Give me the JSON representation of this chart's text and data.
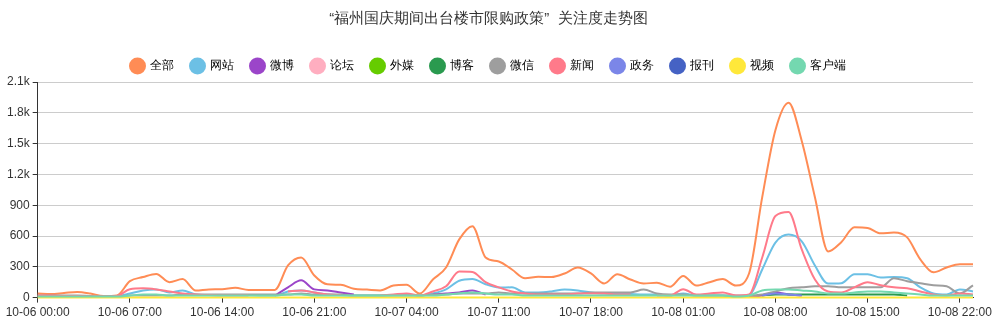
{
  "chart_data": {
    "type": "line",
    "title": "“福州国庆期间出台楼市限购政策”  关注度走势图",
    "categories": [
      "10-06 00:00",
      null,
      null,
      null,
      null,
      null,
      null,
      "10-06 07:00",
      null,
      null,
      null,
      null,
      null,
      null,
      "10-06 14:00",
      null,
      null,
      null,
      null,
      null,
      null,
      "10-06 21:00",
      null,
      null,
      null,
      null,
      null,
      null,
      "10-07 04:00",
      null,
      null,
      null,
      null,
      null,
      null,
      "10-07 11:00",
      null,
      null,
      null,
      null,
      null,
      null,
      "10-07 18:00",
      null,
      null,
      null,
      null,
      null,
      null,
      "10-08 01:00",
      null,
      null,
      null,
      null,
      null,
      null,
      "10-08 08:00",
      null,
      null,
      null,
      null,
      null,
      null,
      "10-08 15:00",
      null,
      null,
      null,
      null,
      null,
      null,
      "10-08 22:00",
      null
    ],
    "series": [
      {
        "name": "全部",
        "color": "#ff8c55",
        "values": [
          40,
          35,
          45,
          55,
          40,
          15,
          20,
          160,
          200,
          230,
          150,
          180,
          70,
          80,
          82,
          95,
          75,
          75,
          75,
          313,
          391,
          215,
          129,
          125,
          86,
          78,
          70,
          117,
          125,
          39,
          176,
          293,
          567,
          696,
          391,
          352,
          274,
          188,
          203,
          200,
          235,
          293,
          235,
          137,
          227,
          176,
          137,
          145,
          106,
          211,
          117,
          150,
          180,
          117,
          235,
          978,
          1631,
          1898,
          1526,
          978,
          450,
          540,
          685,
          678,
          626,
          634,
          587,
          372,
          246,
          293,
          325,
          325
        ]
      },
      {
        "name": "网站",
        "color": "#6cc0e5",
        "values": [
          null,
          null,
          null,
          null,
          null,
          10,
          15,
          40,
          70,
          80,
          50,
          70,
          30,
          25,
          25,
          25,
          25,
          20,
          20,
          60,
          70,
          50,
          30,
          25,
          20,
          20,
          20,
          25,
          30,
          20,
          40,
          80,
          164,
          180,
          130,
          98,
          100,
          50,
          50,
          60,
          78,
          70,
          50,
          40,
          40,
          35,
          30,
          30,
          20,
          40,
          20,
          20,
          20,
          10,
          20,
          274,
          536,
          614,
          548,
          313,
          137,
          140,
          227,
          227,
          196,
          200,
          188,
          100,
          40,
          30,
          80,
          60
        ]
      },
      {
        "name": "微博",
        "color": "#9b45c9",
        "values": [
          null,
          null,
          null,
          null,
          null,
          null,
          null,
          null,
          null,
          null,
          null,
          null,
          null,
          null,
          null,
          null,
          null,
          null,
          20,
          100,
          168,
          80,
          70,
          50,
          30,
          null,
          null,
          null,
          null,
          null,
          30,
          40,
          50,
          70,
          30,
          null,
          null,
          null,
          null,
          null,
          null,
          null,
          null,
          null,
          null,
          null,
          null,
          null,
          null,
          null,
          null,
          null,
          null,
          null,
          10,
          20,
          50,
          30,
          20,
          null,
          null,
          null,
          null,
          null,
          null,
          null,
          null,
          null,
          null,
          null,
          null,
          null
        ]
      },
      {
        "name": "论坛",
        "color": "#ffaec0",
        "values": [
          null,
          null,
          null,
          null,
          null,
          null,
          null,
          null,
          null,
          null,
          null,
          null,
          null,
          null,
          null,
          null,
          null,
          null,
          null,
          null,
          null,
          null,
          null,
          null,
          null,
          null,
          null,
          null,
          null,
          null,
          null,
          null,
          null,
          null,
          null,
          null,
          null,
          null,
          null,
          null,
          null,
          null,
          null,
          null,
          null,
          null,
          null,
          null,
          null,
          null,
          null,
          null,
          null,
          null,
          null,
          null,
          null,
          null,
          null,
          null,
          null,
          null,
          null,
          null,
          null,
          null,
          null,
          null,
          null,
          null,
          null,
          null
        ]
      },
      {
        "name": "外媒",
        "color": "#66cc00",
        "values": [
          null,
          null,
          null,
          null,
          null,
          null,
          null,
          null,
          null,
          null,
          null,
          null,
          null,
          null,
          null,
          null,
          null,
          null,
          null,
          null,
          null,
          null,
          null,
          null,
          null,
          null,
          null,
          null,
          null,
          null,
          null,
          null,
          null,
          null,
          null,
          null,
          null,
          null,
          null,
          null,
          null,
          null,
          null,
          null,
          null,
          null,
          null,
          null,
          null,
          null,
          null,
          null,
          null,
          null,
          null,
          null,
          null,
          null,
          null,
          null,
          null,
          null,
          null,
          null,
          null,
          null,
          null,
          null,
          null,
          null,
          null,
          null
        ]
      },
      {
        "name": "博客",
        "color": "#2a9a4f",
        "values": [
          null,
          null,
          null,
          null,
          null,
          null,
          null,
          null,
          null,
          null,
          null,
          null,
          null,
          null,
          null,
          null,
          null,
          null,
          null,
          null,
          null,
          null,
          null,
          null,
          null,
          null,
          null,
          null,
          null,
          null,
          null,
          null,
          null,
          null,
          null,
          null,
          null,
          null,
          null,
          null,
          null,
          null,
          null,
          null,
          null,
          null,
          null,
          null,
          null,
          null,
          null,
          null,
          null,
          null,
          null,
          20,
          30,
          30,
          30,
          30,
          30,
          30,
          30,
          30,
          30,
          30,
          20,
          null,
          null,
          null,
          null,
          null
        ]
      },
      {
        "name": "微信",
        "color": "#9e9e9e",
        "values": [
          20,
          20,
          20,
          20,
          15,
          10,
          10,
          20,
          20,
          20,
          20,
          30,
          30,
          30,
          30,
          30,
          30,
          30,
          30,
          30,
          40,
          30,
          30,
          30,
          20,
          20,
          20,
          20,
          20,
          20,
          30,
          30,
          40,
          40,
          40,
          50,
          40,
          40,
          40,
          40,
          40,
          40,
          50,
          50,
          50,
          50,
          78,
          40,
          30,
          30,
          20,
          20,
          20,
          20,
          20,
          30,
          60,
          90,
          100,
          110,
          110,
          100,
          100,
          100,
          100,
          188,
          160,
          140,
          120,
          110,
          40,
          120
        ]
      },
      {
        "name": "新闻",
        "color": "#ff7a8a",
        "values": [
          20,
          20,
          15,
          15,
          10,
          10,
          15,
          82,
          90,
          80,
          60,
          40,
          30,
          25,
          20,
          20,
          20,
          null,
          null,
          60,
          70,
          50,
          30,
          25,
          null,
          null,
          20,
          30,
          40,
          20,
          60,
          110,
          254,
          250,
          150,
          100,
          60,
          40,
          30,
          30,
          30,
          40,
          40,
          40,
          30,
          30,
          null,
          20,
          20,
          82,
          30,
          40,
          50,
          20,
          30,
          391,
          794,
          833,
          469,
          176,
          59,
          50,
          100,
          150,
          120,
          100,
          90,
          60,
          30,
          20,
          40,
          30
        ]
      },
      {
        "name": "政务",
        "color": "#7b86e8",
        "values": [
          null,
          null,
          null,
          null,
          null,
          null,
          null,
          null,
          null,
          null,
          null,
          null,
          null,
          null,
          null,
          null,
          null,
          null,
          null,
          null,
          null,
          null,
          null,
          null,
          null,
          null,
          null,
          null,
          null,
          null,
          null,
          null,
          null,
          null,
          null,
          null,
          null,
          null,
          null,
          null,
          null,
          null,
          null,
          null,
          null,
          null,
          null,
          null,
          null,
          null,
          null,
          null,
          null,
          null,
          null,
          20,
          40,
          30,
          20,
          null,
          null,
          null,
          null,
          null,
          null,
          null,
          null,
          null,
          null,
          null,
          null,
          null
        ]
      },
      {
        "name": "报刊",
        "color": "#4562c4",
        "values": [
          null,
          null,
          null,
          null,
          null,
          null,
          null,
          null,
          null,
          null,
          null,
          null,
          null,
          null,
          null,
          null,
          null,
          null,
          null,
          null,
          null,
          null,
          null,
          null,
          null,
          null,
          null,
          null,
          null,
          null,
          null,
          null,
          null,
          null,
          null,
          null,
          null,
          null,
          null,
          null,
          null,
          null,
          null,
          null,
          null,
          null,
          null,
          null,
          null,
          null,
          null,
          null,
          null,
          null,
          null,
          null,
          null,
          null,
          null,
          null,
          null,
          null,
          null,
          null,
          null,
          null,
          null,
          null,
          null,
          null,
          null,
          null
        ]
      },
      {
        "name": "视频",
        "color": "#ffe83a",
        "values": [
          0,
          0,
          0,
          0,
          0,
          0,
          0,
          0,
          0,
          0,
          0,
          0,
          0,
          0,
          0,
          0,
          0,
          0,
          0,
          0,
          0,
          0,
          0,
          0,
          0,
          0,
          0,
          0,
          0,
          0,
          0,
          0,
          0,
          0,
          0,
          0,
          0,
          0,
          0,
          0,
          0,
          0,
          0,
          0,
          0,
          0,
          0,
          0,
          0,
          0,
          0,
          0,
          0,
          0,
          0,
          0,
          0,
          0,
          0,
          0,
          0,
          0,
          0,
          0,
          0,
          0,
          0,
          0,
          0,
          0,
          0,
          0
        ]
      },
      {
        "name": "客户端",
        "color": "#74d8b0",
        "values": [
          10,
          10,
          10,
          10,
          10,
          10,
          10,
          20,
          30,
          30,
          20,
          20,
          20,
          20,
          20,
          20,
          20,
          20,
          20,
          30,
          30,
          20,
          20,
          20,
          20,
          20,
          20,
          20,
          20,
          20,
          20,
          30,
          40,
          50,
          40,
          30,
          30,
          20,
          20,
          20,
          20,
          20,
          20,
          20,
          20,
          20,
          20,
          20,
          20,
          20,
          20,
          20,
          20,
          10,
          20,
          70,
          80,
          80,
          70,
          60,
          40,
          40,
          50,
          60,
          60,
          50,
          40,
          30,
          20,
          20,
          20,
          20
        ]
      }
    ],
    "ylim": [
      0,
      2100
    ],
    "yticks": [
      0,
      300,
      600,
      900,
      {
        "value": 1200,
        "label": "1.2k"
      },
      {
        "value": 1500,
        "label": "1.5k"
      },
      {
        "value": 1800,
        "label": "1.8k"
      },
      {
        "value": 2100,
        "label": "2.1k"
      }
    ],
    "grid": "y",
    "legend": "top",
    "line_style": "solid"
  }
}
